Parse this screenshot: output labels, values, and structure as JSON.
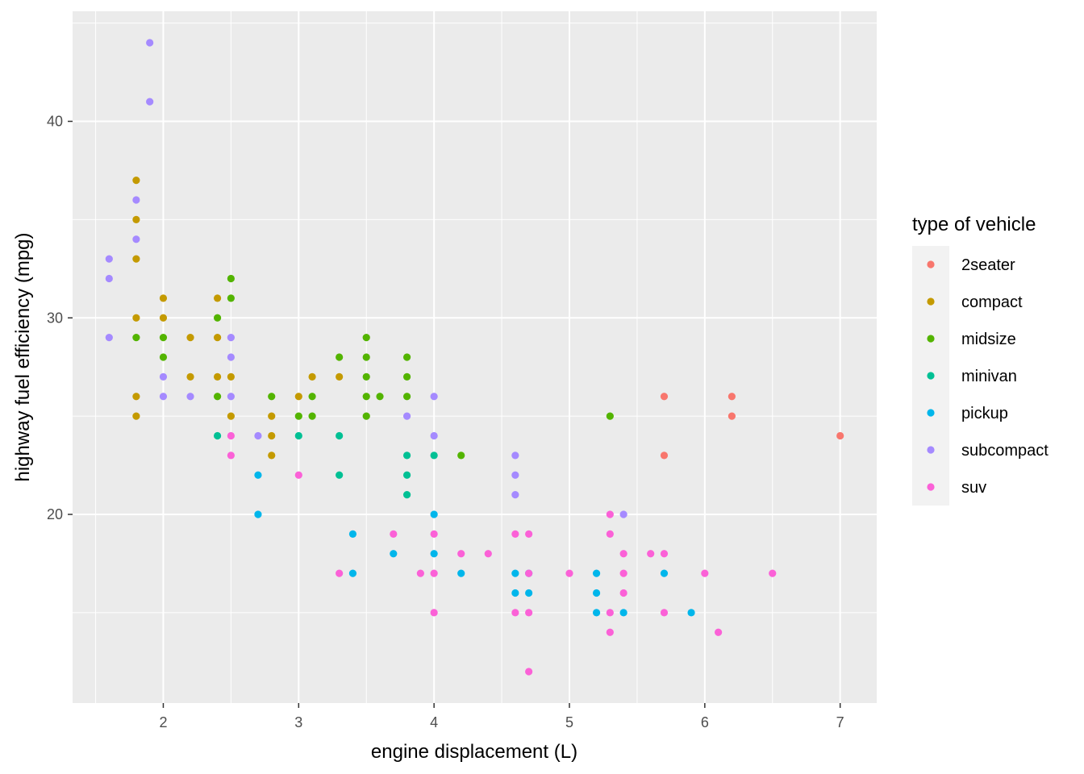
{
  "chart_data": {
    "type": "scatter",
    "title": "",
    "xlabel": "engine displacement (L)",
    "ylabel": "highway fuel efficiency (mpg)",
    "xlim": [
      1.33,
      7.27
    ],
    "ylim": [
      10.4,
      45.6
    ],
    "x_ticks": [
      2,
      3,
      4,
      5,
      6,
      7
    ],
    "y_ticks": [
      20,
      30,
      40
    ],
    "grid": true,
    "legend": {
      "title": "type of vehicle",
      "placement": "right"
    },
    "series": [
      {
        "name": "2seater",
        "color": "#F8766D",
        "points": [
          [
            5.7,
            26
          ],
          [
            5.7,
            23
          ],
          [
            6.2,
            26
          ],
          [
            6.2,
            25
          ],
          [
            7.0,
            24
          ]
        ]
      },
      {
        "name": "compact",
        "color": "#C49A00",
        "points": [
          [
            1.8,
            37
          ],
          [
            1.8,
            35
          ],
          [
            1.8,
            33
          ],
          [
            1.8,
            30
          ],
          [
            1.8,
            26
          ],
          [
            1.8,
            25
          ],
          [
            2.0,
            31
          ],
          [
            2.0,
            30
          ],
          [
            2.2,
            29
          ],
          [
            2.2,
            27
          ],
          [
            2.4,
            31
          ],
          [
            2.4,
            29
          ],
          [
            2.4,
            27
          ],
          [
            2.5,
            27
          ],
          [
            2.5,
            25
          ],
          [
            2.8,
            25
          ],
          [
            2.8,
            24
          ],
          [
            2.8,
            23
          ],
          [
            3.0,
            26
          ],
          [
            3.1,
            27
          ],
          [
            3.3,
            27
          ]
        ]
      },
      {
        "name": "midsize",
        "color": "#53B400",
        "points": [
          [
            1.8,
            29
          ],
          [
            2.0,
            29
          ],
          [
            2.0,
            28
          ],
          [
            2.4,
            30
          ],
          [
            2.4,
            26
          ],
          [
            2.5,
            32
          ],
          [
            2.5,
            31
          ],
          [
            2.8,
            26
          ],
          [
            3.0,
            25
          ],
          [
            3.1,
            26
          ],
          [
            3.1,
            25
          ],
          [
            3.3,
            28
          ],
          [
            3.5,
            29
          ],
          [
            3.5,
            28
          ],
          [
            3.5,
            27
          ],
          [
            3.5,
            26
          ],
          [
            3.5,
            25
          ],
          [
            3.6,
            26
          ],
          [
            3.8,
            28
          ],
          [
            3.8,
            27
          ],
          [
            3.8,
            26
          ],
          [
            4.2,
            23
          ],
          [
            5.3,
            25
          ]
        ]
      },
      {
        "name": "minivan",
        "color": "#00C094",
        "points": [
          [
            2.4,
            24
          ],
          [
            3.0,
            24
          ],
          [
            3.3,
            24
          ],
          [
            3.3,
            22
          ],
          [
            3.8,
            23
          ],
          [
            3.8,
            22
          ],
          [
            3.8,
            21
          ],
          [
            4.0,
            23
          ]
        ]
      },
      {
        "name": "pickup",
        "color": "#00B6EB",
        "points": [
          [
            2.7,
            22
          ],
          [
            2.7,
            20
          ],
          [
            3.4,
            19
          ],
          [
            3.4,
            17
          ],
          [
            3.7,
            18
          ],
          [
            4.0,
            20
          ],
          [
            4.0,
            18
          ],
          [
            4.2,
            17
          ],
          [
            4.6,
            17
          ],
          [
            4.6,
            16
          ],
          [
            4.7,
            17
          ],
          [
            4.7,
            16
          ],
          [
            5.2,
            17
          ],
          [
            5.2,
            16
          ],
          [
            5.2,
            15
          ],
          [
            5.4,
            15
          ],
          [
            5.7,
            17
          ],
          [
            5.9,
            15
          ]
        ]
      },
      {
        "name": "subcompact",
        "color": "#A58AFF",
        "points": [
          [
            1.6,
            33
          ],
          [
            1.6,
            32
          ],
          [
            1.6,
            29
          ],
          [
            1.8,
            36
          ],
          [
            1.8,
            34
          ],
          [
            1.9,
            44
          ],
          [
            1.9,
            41
          ],
          [
            2.0,
            27
          ],
          [
            2.0,
            26
          ],
          [
            2.2,
            26
          ],
          [
            2.5,
            29
          ],
          [
            2.5,
            28
          ],
          [
            2.5,
            26
          ],
          [
            2.7,
            24
          ],
          [
            3.8,
            25
          ],
          [
            4.0,
            26
          ],
          [
            4.0,
            24
          ],
          [
            4.6,
            23
          ],
          [
            4.6,
            22
          ],
          [
            4.6,
            21
          ],
          [
            5.4,
            20
          ]
        ]
      },
      {
        "name": "suv",
        "color": "#FB61D7",
        "points": [
          [
            2.5,
            24
          ],
          [
            2.5,
            23
          ],
          [
            3.0,
            22
          ],
          [
            3.3,
            17
          ],
          [
            3.7,
            19
          ],
          [
            3.9,
            17
          ],
          [
            4.0,
            19
          ],
          [
            4.0,
            17
          ],
          [
            4.0,
            15
          ],
          [
            4.2,
            18
          ],
          [
            4.4,
            18
          ],
          [
            4.6,
            19
          ],
          [
            4.6,
            15
          ],
          [
            4.7,
            19
          ],
          [
            4.7,
            17
          ],
          [
            4.7,
            15
          ],
          [
            4.7,
            12
          ],
          [
            5.0,
            17
          ],
          [
            5.3,
            20
          ],
          [
            5.3,
            19
          ],
          [
            5.3,
            15
          ],
          [
            5.3,
            14
          ],
          [
            5.4,
            18
          ],
          [
            5.4,
            17
          ],
          [
            5.4,
            16
          ],
          [
            5.6,
            18
          ],
          [
            5.7,
            18
          ],
          [
            5.7,
            15
          ],
          [
            6.0,
            17
          ],
          [
            6.1,
            14
          ],
          [
            6.5,
            17
          ]
        ]
      }
    ]
  }
}
